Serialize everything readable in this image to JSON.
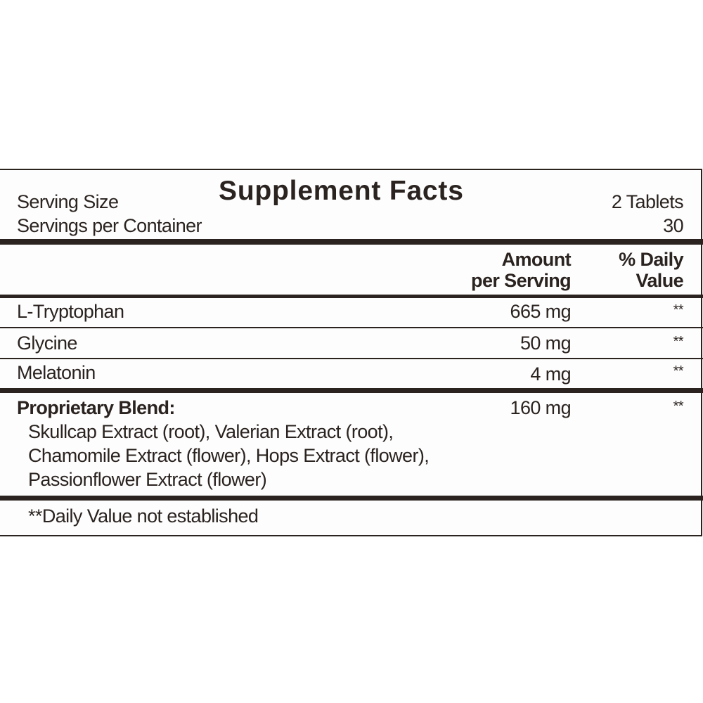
{
  "title": "Supplement Facts",
  "serving": {
    "size_label": "Serving Size",
    "size_value": "2 Tablets",
    "per_container_label": "Servings per Container",
    "per_container_value": "30"
  },
  "headers": {
    "amount_line1": "Amount",
    "amount_line2": "per Serving",
    "dv_line1": "% Daily",
    "dv_line2": "Value"
  },
  "ingredients": [
    {
      "name": "L-Tryptophan",
      "amount": "665 mg",
      "dv": "**"
    },
    {
      "name": "Glycine",
      "amount": "50 mg",
      "dv": "**"
    },
    {
      "name": "Melatonin",
      "amount": "4 mg",
      "dv": "**"
    }
  ],
  "blend": {
    "name": "Proprietary Blend:",
    "amount": "160 mg",
    "dv": "**",
    "lines": [
      "Skullcap Extract (root), Valerian Extract (root),",
      "Chamomile Extract (flower), Hops Extract (flower),",
      "Passionflower Extract (flower)"
    ]
  },
  "footnote": "**Daily Value not established"
}
